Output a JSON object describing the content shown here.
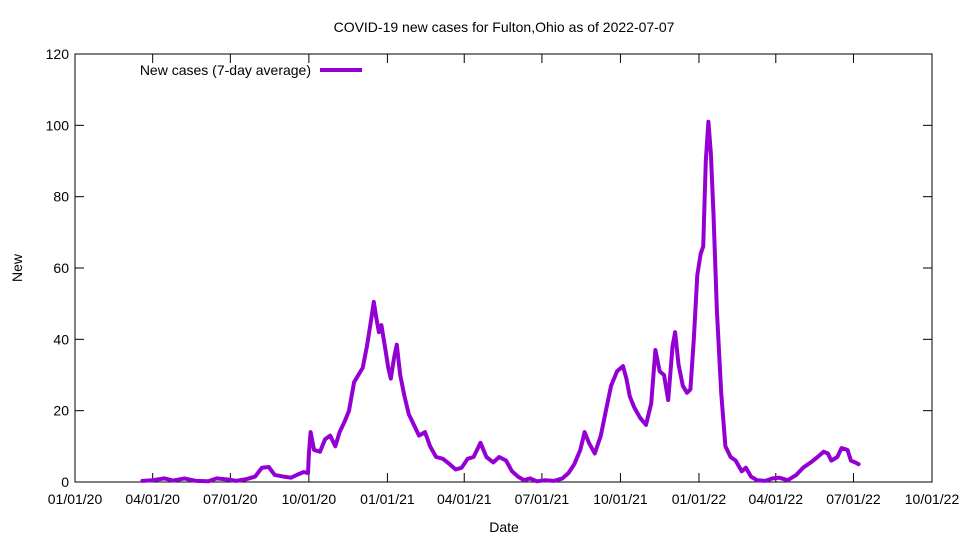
{
  "chart_data": {
    "type": "line",
    "title": "COVID-19 new cases for Fulton,Ohio as of 2022-07-07",
    "xlabel": "Date",
    "ylabel": "New",
    "x_range": [
      "2020-01-01",
      "2022-10-01"
    ],
    "ylim": [
      0,
      120
    ],
    "y_ticks": [
      0,
      20,
      40,
      60,
      80,
      100,
      120
    ],
    "x_ticks": [
      {
        "date": "2020-01-01",
        "label": "01/01/20"
      },
      {
        "date": "2020-04-01",
        "label": "04/01/20"
      },
      {
        "date": "2020-07-01",
        "label": "07/01/20"
      },
      {
        "date": "2020-10-01",
        "label": "10/01/20"
      },
      {
        "date": "2021-01-01",
        "label": "01/01/21"
      },
      {
        "date": "2021-04-01",
        "label": "04/01/21"
      },
      {
        "date": "2021-07-01",
        "label": "07/01/21"
      },
      {
        "date": "2021-10-01",
        "label": "10/01/21"
      },
      {
        "date": "2022-01-01",
        "label": "01/01/22"
      },
      {
        "date": "2022-04-01",
        "label": "04/01/22"
      },
      {
        "date": "2022-07-01",
        "label": "07/01/22"
      },
      {
        "date": "2022-10-01",
        "label": "10/01/22"
      }
    ],
    "grid": false,
    "legend_position": "top-left",
    "series": [
      {
        "name": "New cases (7-day average)",
        "color": "#9400d3",
        "points": [
          [
            "2020-03-20",
            0.3
          ],
          [
            "2020-04-01",
            0.5
          ],
          [
            "2020-04-15",
            1.0
          ],
          [
            "2020-04-25",
            0.4
          ],
          [
            "2020-05-08",
            1.0
          ],
          [
            "2020-05-22",
            0.3
          ],
          [
            "2020-06-05",
            0.2
          ],
          [
            "2020-06-15",
            1.0
          ],
          [
            "2020-06-28",
            0.7
          ],
          [
            "2020-07-08",
            0.3
          ],
          [
            "2020-07-20",
            0.8
          ],
          [
            "2020-07-30",
            1.5
          ],
          [
            "2020-08-07",
            4.0
          ],
          [
            "2020-08-15",
            4.2
          ],
          [
            "2020-08-22",
            2.0
          ],
          [
            "2020-09-01",
            1.5
          ],
          [
            "2020-09-10",
            1.2
          ],
          [
            "2020-09-17",
            2.0
          ],
          [
            "2020-09-25",
            2.8
          ],
          [
            "2020-09-30",
            2.5
          ],
          [
            "2020-10-01",
            8.0
          ],
          [
            "2020-10-03",
            14.0
          ],
          [
            "2020-10-07",
            9.0
          ],
          [
            "2020-10-14",
            8.5
          ],
          [
            "2020-10-20",
            12.0
          ],
          [
            "2020-10-26",
            13.0
          ],
          [
            "2020-11-01",
            10.0
          ],
          [
            "2020-11-06",
            14.0
          ],
          [
            "2020-11-12",
            17.0
          ],
          [
            "2020-11-17",
            20.0
          ],
          [
            "2020-11-23",
            28.0
          ],
          [
            "2020-11-28",
            30.0
          ],
          [
            "2020-12-03",
            32.0
          ],
          [
            "2020-12-08",
            38.0
          ],
          [
            "2020-12-12",
            44.0
          ],
          [
            "2020-12-16",
            50.5
          ],
          [
            "2020-12-19",
            46.0
          ],
          [
            "2020-12-22",
            42.0
          ],
          [
            "2020-12-25",
            44.0
          ],
          [
            "2020-12-29",
            38.0
          ],
          [
            "2021-01-02",
            32.0
          ],
          [
            "2021-01-05",
            29.0
          ],
          [
            "2021-01-09",
            35.0
          ],
          [
            "2021-01-12",
            38.5
          ],
          [
            "2021-01-16",
            30.0
          ],
          [
            "2021-01-21",
            24.0
          ],
          [
            "2021-01-26",
            19.0
          ],
          [
            "2021-02-01",
            16.0
          ],
          [
            "2021-02-07",
            13.0
          ],
          [
            "2021-02-14",
            14.0
          ],
          [
            "2021-02-20",
            10.0
          ],
          [
            "2021-02-27",
            7.0
          ],
          [
            "2021-03-07",
            6.5
          ],
          [
            "2021-03-15",
            5.0
          ],
          [
            "2021-03-22",
            3.5
          ],
          [
            "2021-03-29",
            4.0
          ],
          [
            "2021-04-05",
            6.5
          ],
          [
            "2021-04-12",
            7.0
          ],
          [
            "2021-04-20",
            11.0
          ],
          [
            "2021-04-27",
            7.0
          ],
          [
            "2021-05-05",
            5.5
          ],
          [
            "2021-05-12",
            7.0
          ],
          [
            "2021-05-20",
            6.0
          ],
          [
            "2021-05-27",
            3.0
          ],
          [
            "2021-06-03",
            1.5
          ],
          [
            "2021-06-10",
            0.5
          ],
          [
            "2021-06-17",
            1.0
          ],
          [
            "2021-06-25",
            0.2
          ],
          [
            "2021-07-05",
            0.5
          ],
          [
            "2021-07-15",
            0.3
          ],
          [
            "2021-07-25",
            1.0
          ],
          [
            "2021-08-01",
            2.5
          ],
          [
            "2021-08-08",
            5.0
          ],
          [
            "2021-08-15",
            9.0
          ],
          [
            "2021-08-20",
            14.0
          ],
          [
            "2021-08-25",
            11.0
          ],
          [
            "2021-09-01",
            8.0
          ],
          [
            "2021-09-08",
            13.0
          ],
          [
            "2021-09-14",
            20.0
          ],
          [
            "2021-09-20",
            27.0
          ],
          [
            "2021-09-27",
            31.0
          ],
          [
            "2021-10-04",
            32.5
          ],
          [
            "2021-10-08",
            29.0
          ],
          [
            "2021-10-12",
            24.0
          ],
          [
            "2021-10-17",
            21.0
          ],
          [
            "2021-10-24",
            18.0
          ],
          [
            "2021-10-31",
            16.0
          ],
          [
            "2021-11-06",
            22.0
          ],
          [
            "2021-11-11",
            37.0
          ],
          [
            "2021-11-16",
            31.0
          ],
          [
            "2021-11-21",
            30.0
          ],
          [
            "2021-11-26",
            23.0
          ],
          [
            "2021-12-01",
            38.0
          ],
          [
            "2021-12-04",
            42.0
          ],
          [
            "2021-12-08",
            33.0
          ],
          [
            "2021-12-13",
            27.0
          ],
          [
            "2021-12-18",
            25.0
          ],
          [
            "2021-12-22",
            26.0
          ],
          [
            "2021-12-26",
            40.0
          ],
          [
            "2021-12-30",
            58.0
          ],
          [
            "2022-01-03",
            64.0
          ],
          [
            "2022-01-06",
            66.0
          ],
          [
            "2022-01-09",
            90.0
          ],
          [
            "2022-01-12",
            101.0
          ],
          [
            "2022-01-15",
            92.0
          ],
          [
            "2022-01-18",
            75.0
          ],
          [
            "2022-01-22",
            48.0
          ],
          [
            "2022-01-27",
            25.0
          ],
          [
            "2022-02-01",
            10.0
          ],
          [
            "2022-02-07",
            7.0
          ],
          [
            "2022-02-13",
            6.0
          ],
          [
            "2022-02-20",
            3.0
          ],
          [
            "2022-02-25",
            4.0
          ],
          [
            "2022-03-03",
            1.5
          ],
          [
            "2022-03-10",
            0.5
          ],
          [
            "2022-03-20",
            0.3
          ],
          [
            "2022-03-28",
            1.0
          ],
          [
            "2022-04-05",
            1.2
          ],
          [
            "2022-04-15",
            0.5
          ],
          [
            "2022-04-25",
            2.0
          ],
          [
            "2022-05-03",
            4.0
          ],
          [
            "2022-05-12",
            5.5
          ],
          [
            "2022-05-20",
            7.0
          ],
          [
            "2022-05-27",
            8.5
          ],
          [
            "2022-06-01",
            8.0
          ],
          [
            "2022-06-05",
            6.0
          ],
          [
            "2022-06-12",
            7.0
          ],
          [
            "2022-06-17",
            9.5
          ],
          [
            "2022-06-24",
            9.0
          ],
          [
            "2022-06-28",
            6.0
          ],
          [
            "2022-07-03",
            5.5
          ],
          [
            "2022-07-07",
            5.0
          ]
        ]
      }
    ]
  }
}
